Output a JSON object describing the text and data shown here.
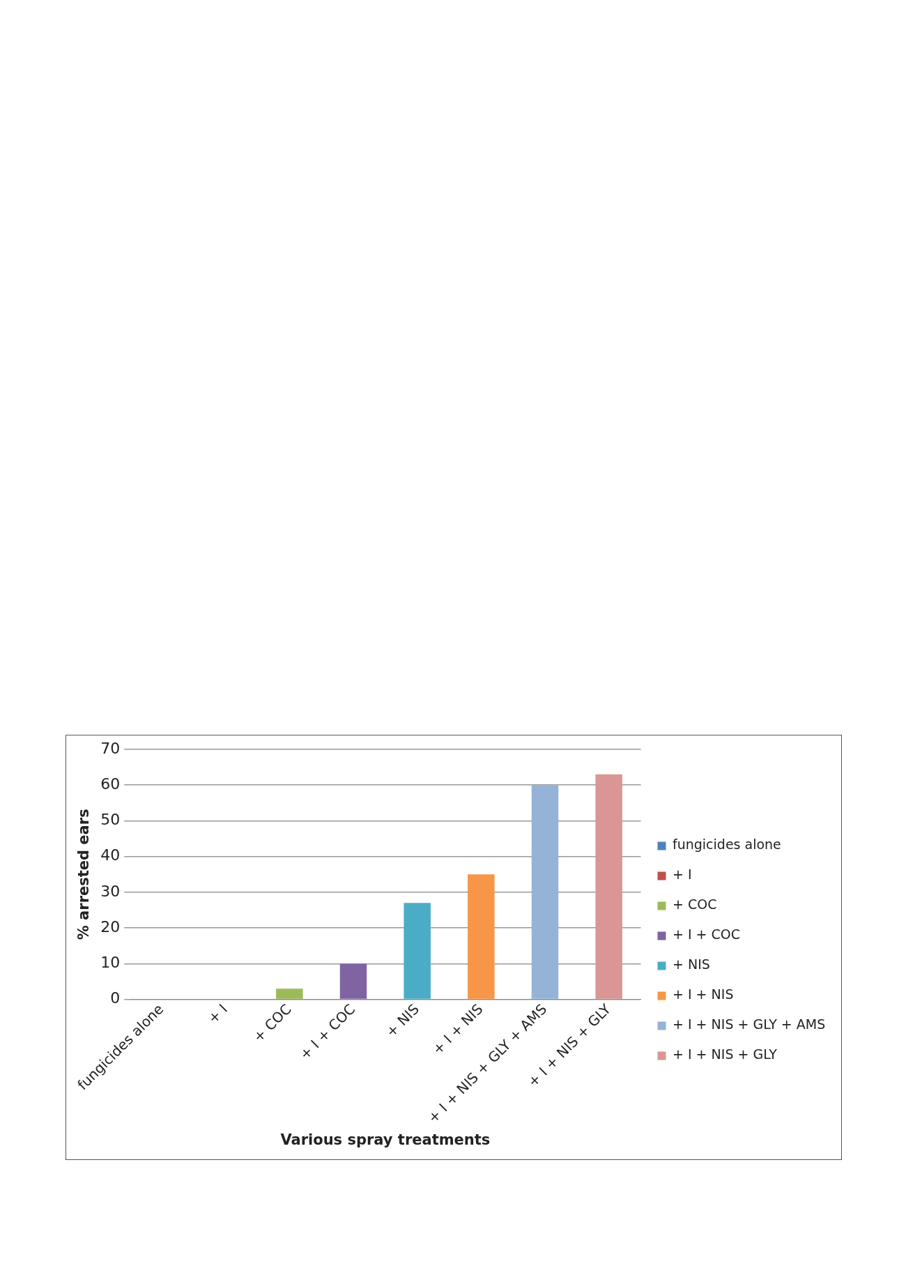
{
  "chart_data": {
    "type": "bar",
    "xlabel": "Various spray treatments",
    "ylabel": "% arrested ears",
    "categories": [
      "fungicides alone",
      "+ I",
      "+ COC",
      "+ I + COC",
      "+ NIS",
      "+ I + NIS",
      "+ I + NIS + GLY + AMS",
      "+ I + NIS + GLY"
    ],
    "series": [
      {
        "name": "fungicides alone",
        "color": "#4f81bd",
        "values": [
          0,
          null,
          null,
          null,
          null,
          null,
          null,
          null
        ]
      },
      {
        "name": "+ I",
        "color": "#c0504d",
        "values": [
          null,
          0,
          null,
          null,
          null,
          null,
          null,
          null
        ]
      },
      {
        "name": "+ COC",
        "color": "#9bbb59",
        "values": [
          null,
          null,
          3,
          null,
          null,
          null,
          null,
          null
        ]
      },
      {
        "name": "+ I + COC",
        "color": "#8064a2",
        "values": [
          null,
          null,
          null,
          10,
          null,
          null,
          null,
          null
        ]
      },
      {
        "name": "+ NIS",
        "color": "#4bacc6",
        "values": [
          null,
          null,
          null,
          null,
          27,
          null,
          null,
          null
        ]
      },
      {
        "name": "+ I + NIS",
        "color": "#f79646",
        "values": [
          null,
          null,
          null,
          null,
          null,
          35,
          null,
          null
        ]
      },
      {
        "name": "+ I + NIS + GLY + AMS",
        "color": "#95b3d7",
        "values": [
          null,
          null,
          null,
          null,
          null,
          null,
          60,
          null
        ]
      },
      {
        "name": "+ I + NIS + GLY",
        "color": "#d99694",
        "values": [
          null,
          null,
          null,
          null,
          null,
          null,
          null,
          63
        ]
      }
    ],
    "ylim": [
      0,
      70
    ],
    "yticks": [
      0,
      10,
      20,
      30,
      40,
      50,
      60,
      70
    ],
    "grid": "y",
    "legend": "right"
  }
}
